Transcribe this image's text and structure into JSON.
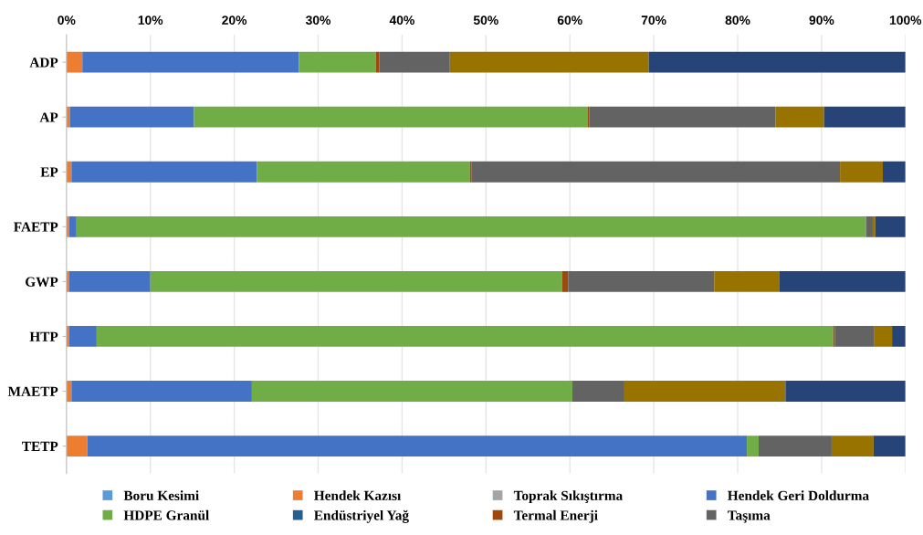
{
  "chart_data": {
    "type": "bar",
    "orientation": "horizontal",
    "stacked": true,
    "categories": [
      "ADP",
      "AP",
      "EP",
      "FAETP",
      "GWP",
      "HTP",
      "MAETP",
      "TETP"
    ],
    "series": [
      {
        "name": "Boru Kesimi",
        "color": "#5b9bd5",
        "values": [
          0,
          0,
          0,
          0,
          0,
          0,
          0,
          0
        ]
      },
      {
        "name": "Hendek Kazısı",
        "color": "#ed7d31",
        "values": [
          1.9,
          0.4,
          0.6,
          0.3,
          0.3,
          0.3,
          0.6,
          2.5
        ]
      },
      {
        "name": "Toprak Sıkıştırma",
        "color": "#a5a5a5",
        "values": [
          0,
          0,
          0,
          0,
          0,
          0,
          0,
          0
        ]
      },
      {
        "name": "Hendek Geri Doldurma",
        "color": "#4472c4",
        "values": [
          25.8,
          14.8,
          22.1,
          0.9,
          9.7,
          3.3,
          21.5,
          78.6
        ]
      },
      {
        "name": "HDPE Granül",
        "color": "#70ad47",
        "values": [
          9.2,
          46.9,
          25.4,
          94.1,
          49.1,
          87.8,
          38.2,
          1.4
        ]
      },
      {
        "name": "Endüstriyel Yağ",
        "color": "#255e91",
        "values": [
          0,
          0,
          0,
          0,
          0,
          0,
          0,
          0
        ]
      },
      {
        "name": "Termal Enerji",
        "color": "#9e480e",
        "values": [
          0.4,
          0.2,
          0.2,
          0,
          0.7,
          0.2,
          0,
          0
        ]
      },
      {
        "name": "Taşıma",
        "color": "#636363",
        "values": [
          8.4,
          22.2,
          43.9,
          0.8,
          17.4,
          4.7,
          6.2,
          8.7
        ]
      },
      {
        "color": "#997300",
        "values": [
          23.7,
          5.8,
          5.1,
          0.3,
          7.8,
          2.1,
          19.2,
          5.0
        ]
      },
      {
        "color": "#264478",
        "values": [
          30.6,
          9.7,
          2.7,
          3.6,
          15.0,
          1.6,
          14.3,
          3.8
        ]
      }
    ],
    "xlim": [
      0,
      100
    ],
    "xticks": [
      {
        "value": 0,
        "label": "0%"
      },
      {
        "value": 10,
        "label": "10%"
      },
      {
        "value": 20,
        "label": "20%"
      },
      {
        "value": 30,
        "label": "30%"
      },
      {
        "value": 40,
        "label": "40%"
      },
      {
        "value": 50,
        "label": "50%"
      },
      {
        "value": 60,
        "label": "60%"
      },
      {
        "value": 70,
        "label": "70%"
      },
      {
        "value": 80,
        "label": "80%"
      },
      {
        "value": 90,
        "label": "90%"
      },
      {
        "value": 100,
        "label": "100%"
      }
    ],
    "grid": "x",
    "legend": "bottom"
  }
}
